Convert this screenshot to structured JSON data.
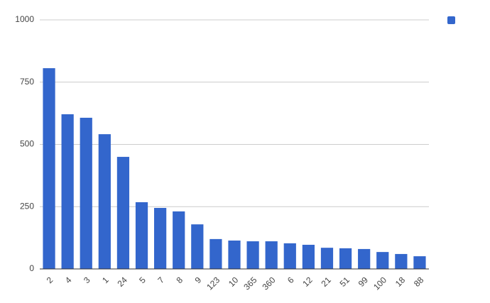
{
  "chart_data": {
    "type": "bar",
    "categories": [
      "2",
      "4",
      "3",
      "1",
      "24",
      "5",
      "7",
      "8",
      "9",
      "123",
      "10",
      "365",
      "360",
      "6",
      "12",
      "21",
      "51",
      "99",
      "100",
      "18",
      "88"
    ],
    "values": [
      806,
      621,
      607,
      541,
      450,
      268,
      245,
      231,
      179,
      120,
      114,
      111,
      111,
      103,
      97,
      85,
      83,
      80,
      68,
      60,
      51
    ],
    "color": "#3366cc",
    "ylim": [
      0,
      1000
    ],
    "yticks": [
      0,
      250,
      500,
      750,
      1000
    ],
    "grid": true,
    "legend": "top-right"
  }
}
